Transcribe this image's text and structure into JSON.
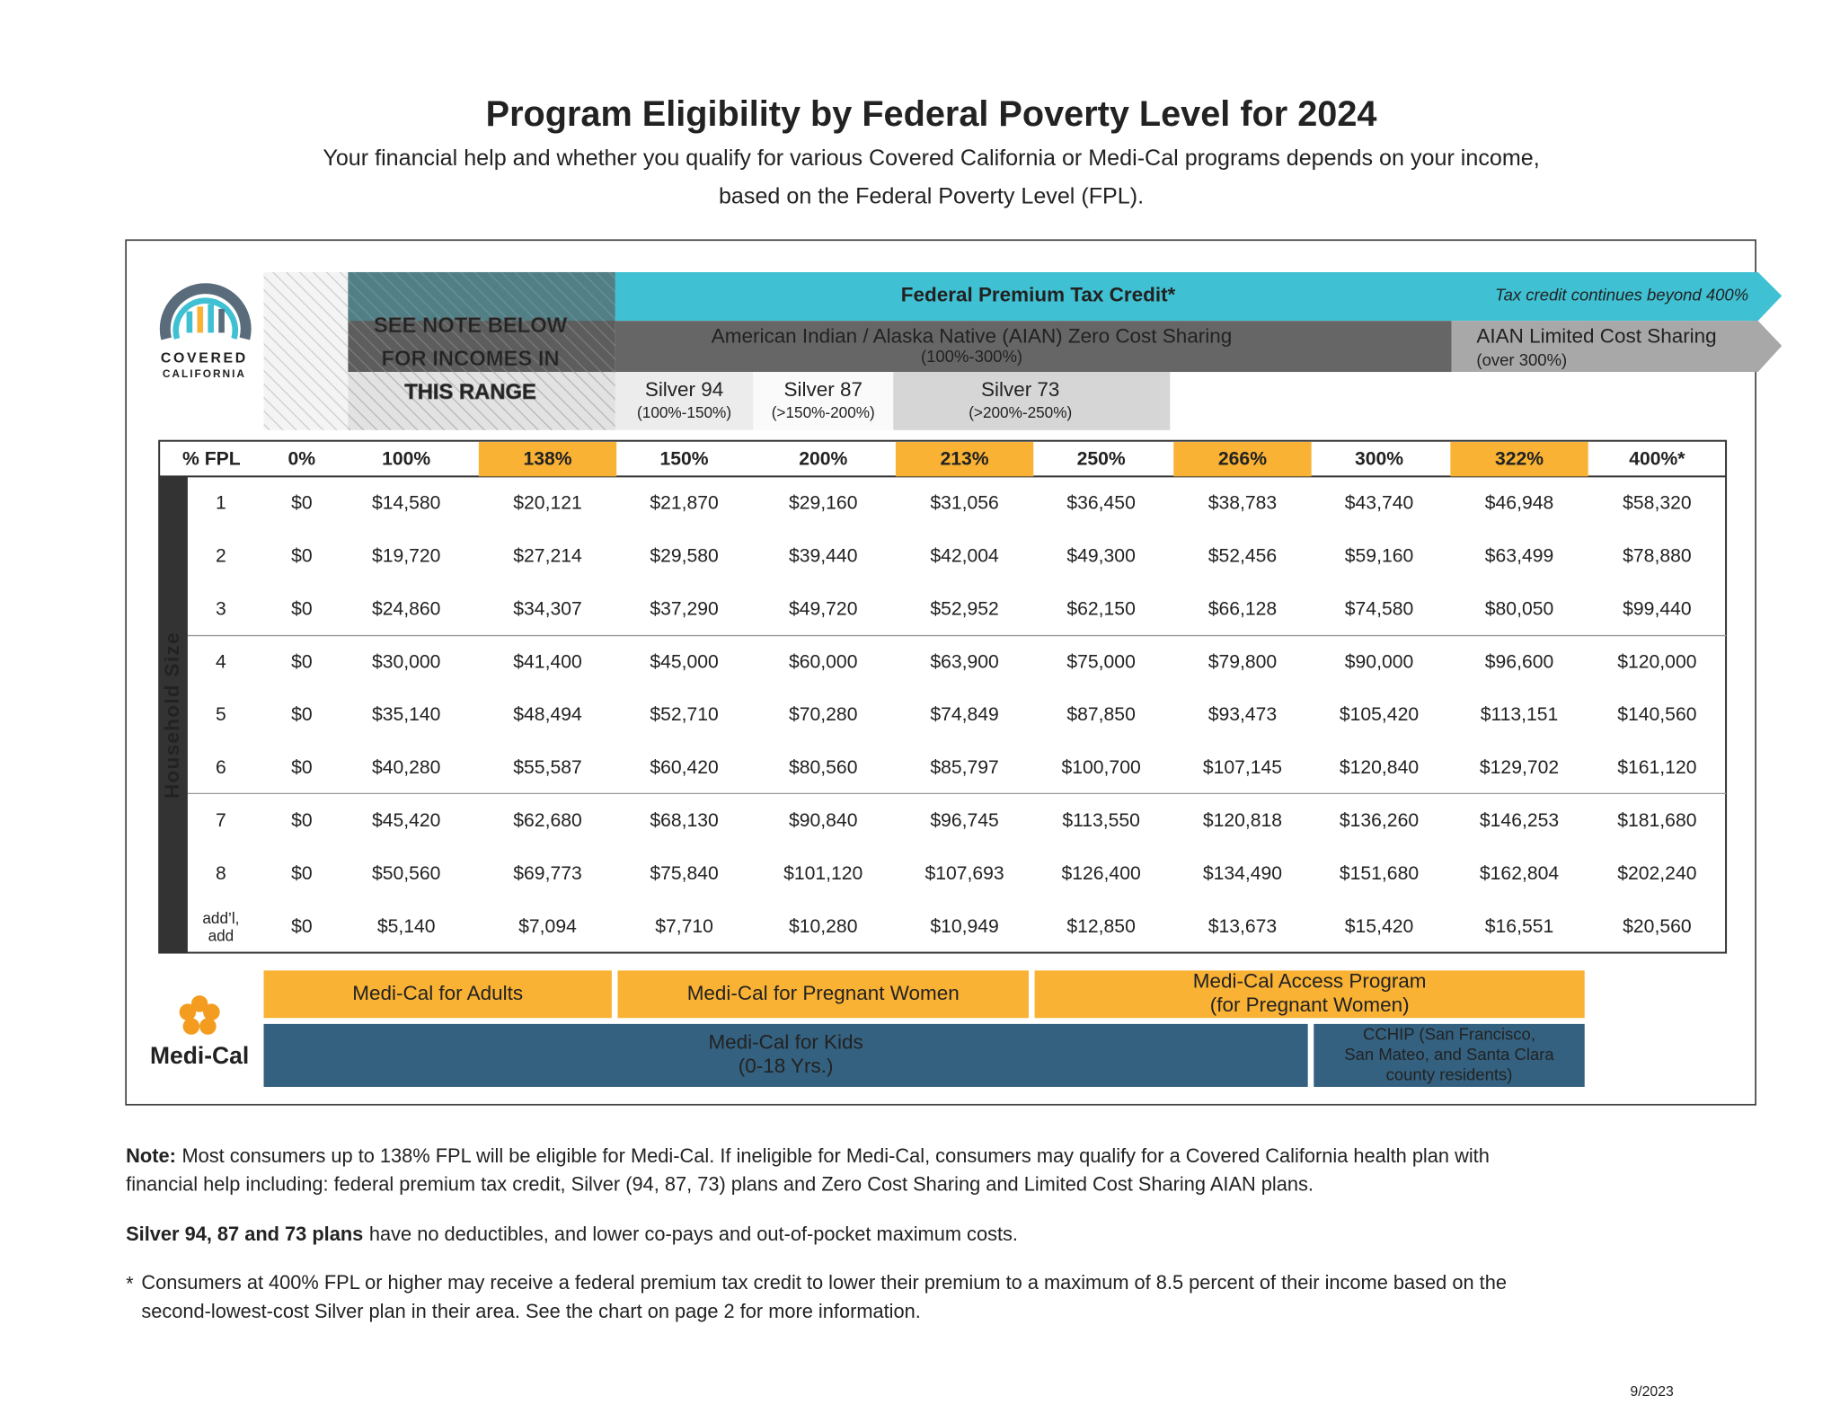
{
  "header": {
    "title": "Program Eligibility by Federal Poverty Level for 2024",
    "subtitle": [
      "Your financial help and whether you qualify for various Covered California or Medi-Cal programs depends on your income,",
      "based on the Federal Poverty Level (FPL)."
    ]
  },
  "logo": {
    "line1": "COVERED",
    "line2": "CALIFORNIA"
  },
  "bands": {
    "ptc": "Federal Premium Tax Credit*",
    "ptc_note": "Tax credit continues beyond 400%",
    "aian_zero": "American Indian / Alaska Native (AIAN) Zero Cost Sharing",
    "aian_zero_range": "(100%-300%)",
    "aian_limited": "AIAN Limited Cost Sharing",
    "aian_limited_range": "(over 300%)",
    "see_note": [
      "SEE NOTE BELOW",
      "FOR INCOMES IN",
      "THIS RANGE"
    ],
    "silver": [
      {
        "name": "Silver 94",
        "range": "(100%-150%)"
      },
      {
        "name": "Silver 87",
        "range": "(>150%-200%)"
      },
      {
        "name": "Silver 73",
        "range": "(>200%-250%)"
      }
    ]
  },
  "table": {
    "side_label": "Household Size",
    "columns": [
      "% FPL",
      "0%",
      "100%",
      "138%",
      "150%",
      "200%",
      "213%",
      "250%",
      "266%",
      "300%",
      "322%",
      "400%*"
    ],
    "rows": [
      [
        "1",
        "$0",
        "$14,580",
        "$20,121",
        "$21,870",
        "$29,160",
        "$31,056",
        "$36,450",
        "$38,783",
        "$43,740",
        "$46,948",
        "$58,320"
      ],
      [
        "2",
        "$0",
        "$19,720",
        "$27,214",
        "$29,580",
        "$39,440",
        "$42,004",
        "$49,300",
        "$52,456",
        "$59,160",
        "$63,499",
        "$78,880"
      ],
      [
        "3",
        "$0",
        "$24,860",
        "$34,307",
        "$37,290",
        "$49,720",
        "$52,952",
        "$62,150",
        "$66,128",
        "$74,580",
        "$80,050",
        "$99,440"
      ],
      [
        "4",
        "$0",
        "$30,000",
        "$41,400",
        "$45,000",
        "$60,000",
        "$63,900",
        "$75,000",
        "$79,800",
        "$90,000",
        "$96,600",
        "$120,000"
      ],
      [
        "5",
        "$0",
        "$35,140",
        "$48,494",
        "$52,710",
        "$70,280",
        "$74,849",
        "$87,850",
        "$93,473",
        "$105,420",
        "$113,151",
        "$140,560"
      ],
      [
        "6",
        "$0",
        "$40,280",
        "$55,587",
        "$60,420",
        "$80,560",
        "$85,797",
        "$100,700",
        "$107,145",
        "$120,840",
        "$129,702",
        "$161,120"
      ],
      [
        "7",
        "$0",
        "$45,420",
        "$62,680",
        "$68,130",
        "$90,840",
        "$96,745",
        "$113,550",
        "$120,818",
        "$136,260",
        "$146,253",
        "$181,680"
      ],
      [
        "8",
        "$0",
        "$50,560",
        "$69,773",
        "$75,840",
        "$101,120",
        "$107,693",
        "$126,400",
        "$134,490",
        "$151,680",
        "$162,804",
        "$202,240"
      ],
      [
        [
          "add’l,",
          "add"
        ],
        "$0",
        "$5,140",
        "$7,094",
        "$7,710",
        "$10,280",
        "$10,949",
        "$12,850",
        "$13,673",
        "$15,420",
        "$16,551",
        "$20,560"
      ]
    ]
  },
  "medi_cal": {
    "label": "Medi-Cal",
    "adults": [
      "Medi-Cal for Adults"
    ],
    "pregnant": [
      "Medi-Cal for Pregnant Women"
    ],
    "access": [
      "Medi-Cal Access Program",
      "(for Pregnant Women)"
    ],
    "kids": [
      "Medi-Cal for Kids",
      "(0-18 Yrs.)"
    ],
    "cchip": [
      "CCHIP (San Francisco,",
      "San Mateo, and Santa Clara",
      "county residents)"
    ]
  },
  "notes": {
    "note_label": "Note:",
    "note_lines": [
      "Most consumers up to 138% FPL will be eligible for Medi-Cal. If ineligible for Medi-Cal, consumers may qualify for a Covered California health plan with",
      "financial help including: federal premium tax credit, Silver (94, 87, 73) plans and Zero Cost Sharing and Limited Cost Sharing AIAN plans."
    ],
    "silver_bold": "Silver 94, 87 and 73 plans",
    "silver_text": "have no deductibles, and lower co-pays and out-of-pocket maximum costs.",
    "star": "*",
    "star_lines": [
      "Consumers at 400% FPL or higher may receive a federal premium tax credit to lower their premium to a maximum of 8.5 percent of their income based on the",
      "second-lowest-cost Silver plan in their area. See the chart on page 2 for more information."
    ]
  },
  "date": "9/2023"
}
